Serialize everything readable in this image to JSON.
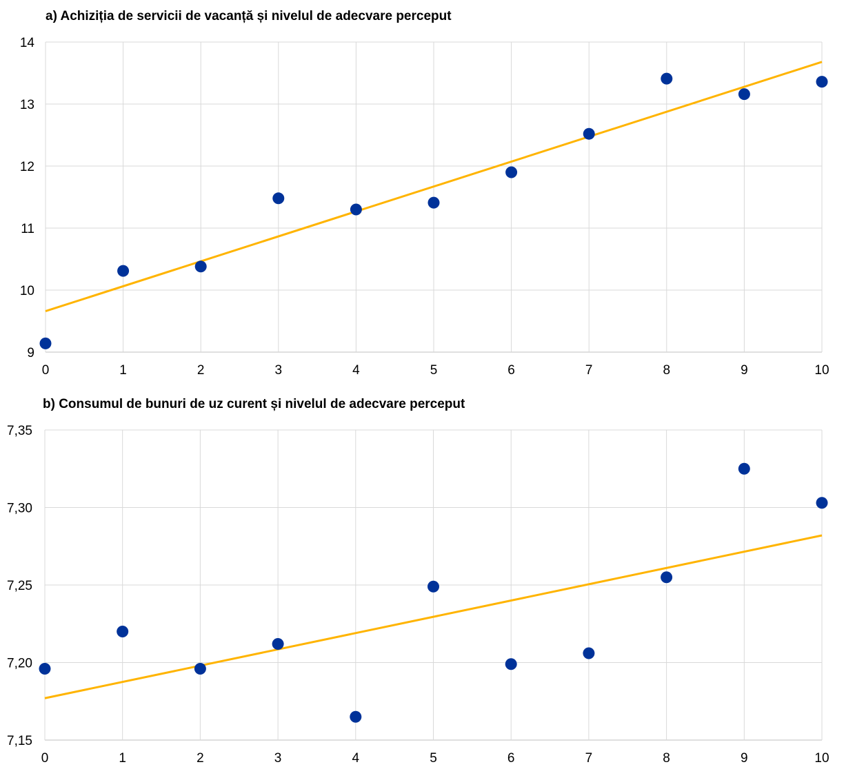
{
  "chart_data": [
    {
      "type": "scatter",
      "title": "a) Achiziția de servicii de vacanță și nivelul de adecvare perceput",
      "xlabel": "",
      "ylabel": "",
      "xlim": [
        0,
        10
      ],
      "ylim": [
        9,
        14
      ],
      "x_ticks": [
        "0",
        "1",
        "2",
        "3",
        "4",
        "5",
        "6",
        "7",
        "8",
        "9",
        "10"
      ],
      "y_ticks": [
        "9",
        "10",
        "11",
        "12",
        "13",
        "14"
      ],
      "grid": true,
      "legend": "none",
      "colors": {
        "points": "#003299",
        "trend": "#ffb400"
      },
      "series": [
        {
          "x": [
            0,
            1,
            2,
            3,
            4,
            5,
            6,
            7,
            8,
            9,
            10
          ],
          "y": [
            9.14,
            10.31,
            10.38,
            11.48,
            11.3,
            11.41,
            11.9,
            12.52,
            13.41,
            13.16,
            13.36
          ]
        }
      ],
      "trendline": {
        "x": [
          0,
          10
        ],
        "y": [
          9.66,
          13.68
        ]
      }
    },
    {
      "type": "scatter",
      "title": "b) Consumul de bunuri de uz curent și nivelul de adecvare perceput",
      "xlabel": "",
      "ylabel": "",
      "xlim": [
        0,
        10
      ],
      "ylim": [
        7.15,
        7.35
      ],
      "x_ticks": [
        "0",
        "1",
        "2",
        "3",
        "4",
        "5",
        "6",
        "7",
        "8",
        "9",
        "10"
      ],
      "y_ticks": [
        "7,15",
        "7,20",
        "7,25",
        "7,30",
        "7,35"
      ],
      "grid": true,
      "legend": "none",
      "colors": {
        "points": "#003299",
        "trend": "#ffb400"
      },
      "series": [
        {
          "x": [
            0,
            1,
            2,
            3,
            4,
            5,
            6,
            7,
            8,
            9,
            10
          ],
          "y": [
            7.196,
            7.22,
            7.196,
            7.212,
            7.165,
            7.249,
            7.199,
            7.206,
            7.255,
            7.325,
            7.303
          ]
        }
      ],
      "trendline": {
        "x": [
          0,
          10
        ],
        "y": [
          7.177,
          7.282
        ]
      }
    }
  ]
}
